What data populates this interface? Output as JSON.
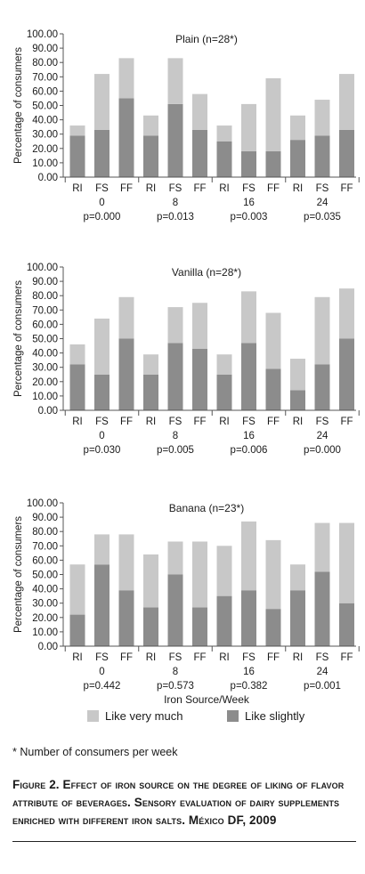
{
  "chart_data": [
    {
      "type": "bar",
      "stacked": true,
      "title": "Plain (n=28*)",
      "ylabel": "Percentage of consumers",
      "ylim": [
        0,
        100
      ],
      "yticks": [
        "0.00",
        "10.00",
        "20.00",
        "30.00",
        "40.00",
        "50.00",
        "60.00",
        "70.00",
        "80.00",
        "90.00",
        "100.00"
      ],
      "categories": [
        "RI",
        "FS",
        "FF",
        "RI",
        "FS",
        "FF",
        "RI",
        "FS",
        "FF",
        "RI",
        "FS",
        "FF"
      ],
      "weeks": [
        "0",
        "8",
        "16",
        "24"
      ],
      "pvalues": [
        "p=0.000",
        "p=0.013",
        "p=0.003",
        "p=0.035"
      ],
      "series": [
        {
          "name": "Like slightly",
          "color": "#8c8c8c",
          "values": [
            29,
            33,
            55,
            29,
            51,
            33,
            25,
            18,
            18,
            26,
            29,
            33
          ]
        },
        {
          "name": "Like very much",
          "color": "#c8c8c8",
          "values": [
            7,
            39,
            28,
            14,
            32,
            25,
            11,
            33,
            51,
            17,
            25,
            39
          ]
        }
      ]
    },
    {
      "type": "bar",
      "stacked": true,
      "title": "Vanilla (n=28*)",
      "ylabel": "Percentage of consumers",
      "ylim": [
        0,
        100
      ],
      "yticks": [
        "0.00",
        "10.00",
        "20.00",
        "30.00",
        "40.00",
        "50.00",
        "60.00",
        "70.00",
        "80.00",
        "90.00",
        "100.00"
      ],
      "categories": [
        "RI",
        "FS",
        "FF",
        "RI",
        "FS",
        "FF",
        "RI",
        "FS",
        "FF",
        "RI",
        "FS",
        "FF"
      ],
      "weeks": [
        "0",
        "8",
        "16",
        "24"
      ],
      "pvalues": [
        "p=0.030",
        "p=0.005",
        "p=0.006",
        "p=0.000"
      ],
      "series": [
        {
          "name": "Like slightly",
          "color": "#8c8c8c",
          "values": [
            32,
            25,
            50,
            25,
            47,
            43,
            25,
            47,
            29,
            14,
            32,
            50
          ]
        },
        {
          "name": "Like very much",
          "color": "#c8c8c8",
          "values": [
            14,
            39,
            29,
            14,
            25,
            32,
            14,
            36,
            39,
            22,
            47,
            35
          ]
        }
      ]
    },
    {
      "type": "bar",
      "stacked": true,
      "title": "Banana (n=23*)",
      "ylabel": "Percentage of consumers",
      "xlabel": "Iron Source/Week",
      "ylim": [
        0,
        100
      ],
      "yticks": [
        "0.00",
        "10.00",
        "20.00",
        "30.00",
        "40.00",
        "50.00",
        "60.00",
        "70.00",
        "80.00",
        "90.00",
        "100.00"
      ],
      "categories": [
        "RI",
        "FS",
        "FF",
        "RI",
        "FS",
        "FF",
        "RI",
        "FS",
        "FF",
        "RI",
        "FS",
        "FF"
      ],
      "weeks": [
        "0",
        "8",
        "16",
        "24"
      ],
      "pvalues": [
        "p=0.442",
        "p=0.573",
        "p=0.382",
        "p=0.001"
      ],
      "series": [
        {
          "name": "Like slightly",
          "color": "#8c8c8c",
          "values": [
            22,
            57,
            39,
            27,
            50,
            27,
            35,
            39,
            26,
            39,
            52,
            30
          ]
        },
        {
          "name": "Like very much",
          "color": "#c8c8c8",
          "values": [
            35,
            21,
            39,
            37,
            23,
            46,
            35,
            48,
            48,
            18,
            34,
            56
          ]
        }
      ]
    }
  ],
  "legend": {
    "like_very_much": "Like very much",
    "like_slightly": "Like slightly",
    "like_very_much_color": "#c8c8c8",
    "like_slightly_color": "#8c8c8c"
  },
  "footnote": "* Number of consumers per week",
  "caption": "Figure 2. Effect of iron source on the degree of liking of flavor attribute of beverages. Sensory evaluation of dairy supplements enriched with different iron salts. México DF, 2009"
}
